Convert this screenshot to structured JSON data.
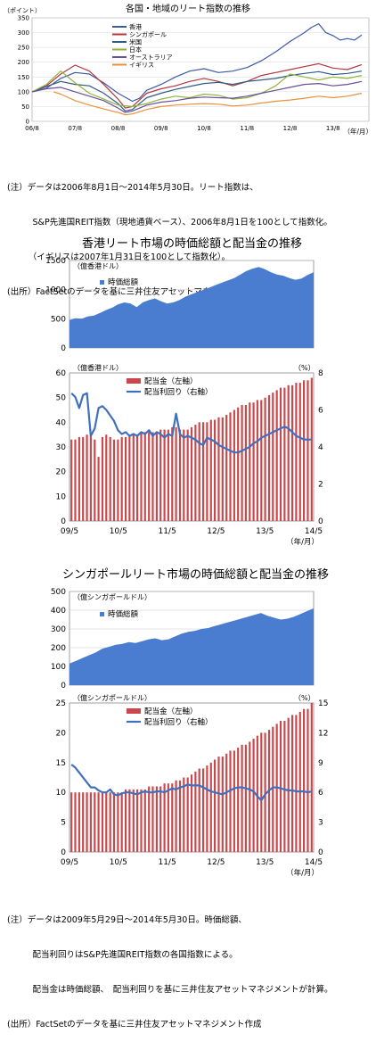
{
  "chart1": {
    "type": "line",
    "title": "各国・地域のリート指数の推移",
    "ylabel": "（ポイント）",
    "xlabel": "（年/月）",
    "ylim": [
      0,
      350
    ],
    "yticks": [
      "0",
      "50",
      "100",
      "150",
      "200",
      "250",
      "300",
      "350"
    ],
    "xtick_labels": [
      "06/8",
      "07/8",
      "08/8",
      "09/8",
      "10/8",
      "11/8",
      "12/8",
      "13/8"
    ],
    "legend": [
      "香港",
      "シンガポール",
      "米国",
      "日本",
      "オーストラリア",
      "イギリス"
    ],
    "colors": [
      "#3c5aa8",
      "#b5373d",
      "#2f5b87",
      "#8fb43a",
      "#6a4d9b",
      "#e9913a"
    ],
    "series": [
      {
        "name": "香港",
        "x": [
          0,
          4,
          8,
          12,
          16,
          20,
          24,
          28,
          30,
          32,
          36,
          40,
          44,
          48,
          52,
          56,
          60,
          64,
          68,
          72,
          76,
          78,
          80,
          82,
          84,
          86,
          88,
          90,
          92
        ],
        "values": [
          100,
          112,
          145,
          165,
          160,
          130,
          95,
          68,
          78,
          105,
          125,
          150,
          170,
          178,
          165,
          170,
          182,
          205,
          235,
          270,
          300,
          318,
          330,
          300,
          290,
          275,
          280,
          275,
          292
        ]
      },
      {
        "name": "シンガポール",
        "x": [
          0,
          4,
          8,
          12,
          16,
          20,
          24,
          26,
          28,
          32,
          36,
          40,
          44,
          48,
          52,
          56,
          60,
          64,
          68,
          72,
          76,
          80,
          84,
          88,
          92
        ],
        "values": [
          100,
          120,
          160,
          190,
          170,
          125,
          75,
          45,
          50,
          95,
          110,
          120,
          135,
          145,
          135,
          120,
          135,
          155,
          165,
          175,
          185,
          195,
          180,
          175,
          192
        ]
      },
      {
        "name": "米国",
        "x": [
          0,
          4,
          8,
          12,
          16,
          20,
          24,
          26,
          28,
          32,
          36,
          40,
          44,
          48,
          52,
          56,
          60,
          64,
          68,
          72,
          76,
          80,
          84,
          88,
          92
        ],
        "values": [
          100,
          118,
          135,
          125,
          120,
          95,
          60,
          35,
          40,
          80,
          95,
          108,
          118,
          128,
          132,
          125,
          135,
          140,
          145,
          155,
          162,
          168,
          158,
          162,
          170
        ]
      },
      {
        "name": "日本",
        "x": [
          0,
          4,
          8,
          12,
          16,
          20,
          24,
          28,
          32,
          36,
          40,
          44,
          48,
          52,
          56,
          60,
          64,
          68,
          72,
          76,
          80,
          84,
          88,
          92
        ],
        "values": [
          100,
          125,
          170,
          130,
          95,
          75,
          55,
          50,
          60,
          75,
          85,
          80,
          92,
          88,
          75,
          80,
          95,
          120,
          160,
          150,
          140,
          150,
          145,
          155
        ]
      },
      {
        "name": "オーストラリア",
        "x": [
          0,
          4,
          8,
          12,
          16,
          20,
          24,
          26,
          28,
          32,
          36,
          40,
          44,
          48,
          52,
          56,
          60,
          64,
          68,
          72,
          76,
          80,
          84,
          88,
          92
        ],
        "values": [
          100,
          110,
          115,
          100,
          85,
          70,
          45,
          30,
          35,
          55,
          65,
          70,
          78,
          82,
          80,
          78,
          85,
          95,
          105,
          115,
          125,
          128,
          120,
          125,
          135
        ]
      },
      {
        "name": "イギリス",
        "x": [
          6,
          8,
          12,
          16,
          20,
          24,
          26,
          28,
          32,
          36,
          40,
          44,
          48,
          52,
          56,
          60,
          64,
          68,
          72,
          76,
          80,
          84,
          88,
          92
        ],
        "values": [
          100,
          92,
          70,
          55,
          42,
          30,
          22,
          25,
          40,
          50,
          55,
          58,
          60,
          58,
          52,
          55,
          62,
          68,
          72,
          78,
          85,
          80,
          85,
          95
        ]
      }
    ]
  },
  "note1": [
    "(注）データは2006年8月1日～2014年5月30日。リート指数は、",
    "　　　S&P先進国REIT指数（現地通貨ベース）、2006年8月1日を100として指数化。",
    "　　　（イギリスは2007年1月31日を100として指数化）。",
    "(出所）FactSetのデータを基に三井住友アセットマネジメント作成"
  ],
  "chart2": {
    "title": "香港リート市場の時価総額と配当金の推移",
    "top": {
      "type": "area",
      "ylabel": "（億香港ドル）",
      "ylim": [
        0,
        1500
      ],
      "yticks": [
        "0",
        "500",
        "1000",
        "1500"
      ],
      "legend": "時価総額",
      "values": [
        480,
        510,
        500,
        540,
        555,
        600,
        650,
        690,
        750,
        780,
        760,
        700,
        780,
        820,
        850,
        800,
        760,
        780,
        820,
        880,
        920,
        960,
        1000,
        1040,
        1080,
        1120,
        1160,
        1200,
        1260,
        1320,
        1360,
        1390,
        1350,
        1300,
        1260,
        1240,
        1200,
        1170,
        1190,
        1250,
        1300
      ]
    },
    "bottom": {
      "type": "bar+line",
      "ylabel_left": "（億香港ドル）",
      "ylabel_right": "（%）",
      "ylim_left": [
        0,
        60
      ],
      "ylim_right": [
        0,
        8
      ],
      "yticks_left": [
        "0",
        "10",
        "20",
        "30",
        "40",
        "50",
        "60"
      ],
      "yticks_right": [
        "0",
        "2",
        "4",
        "6",
        "8"
      ],
      "legend": [
        "配当金（左軸）",
        "配当利回り（右軸）"
      ],
      "xtick_labels": [
        "09/5",
        "10/5",
        "11/5",
        "12/5",
        "13/5",
        "14/5"
      ],
      "xlabel": "（年/月）",
      "bar_values": [
        33,
        33,
        34,
        34,
        35,
        35,
        33,
        26,
        34,
        35,
        34,
        33,
        33,
        34,
        34,
        35,
        35,
        35,
        36,
        36,
        36,
        36,
        36,
        37,
        37,
        37,
        38,
        38,
        37,
        37,
        37,
        38,
        39,
        40,
        40,
        40,
        41,
        41,
        42,
        42,
        43,
        44,
        45,
        46,
        47,
        47,
        48,
        48,
        49,
        49,
        50,
        51,
        52,
        53,
        54,
        54,
        55,
        55,
        56,
        56,
        57,
        57,
        58
      ],
      "line_values": [
        6.9,
        6.7,
        6.1,
        6.8,
        6.9,
        4.6,
        5.0,
        6.1,
        6.2,
        6.0,
        5.7,
        5.4,
        4.9,
        4.7,
        4.8,
        4.6,
        4.7,
        4.6,
        4.8,
        4.7,
        4.9,
        4.6,
        4.8,
        4.7,
        4.5,
        4.7,
        4.6,
        5.8,
        4.7,
        4.5,
        4.6,
        4.5,
        4.4,
        4.2,
        4.1,
        4.5,
        4.4,
        4.3,
        4.1,
        4.0,
        3.9,
        3.8,
        3.7,
        3.7,
        3.8,
        3.9,
        4.0,
        4.2,
        4.3,
        4.5,
        4.6,
        4.7,
        4.8,
        4.9,
        5.0,
        5.1,
        5.0,
        4.8,
        4.6,
        4.5,
        4.4,
        4.4,
        4.4
      ]
    }
  },
  "chart3": {
    "title": "シンガポールリート市場の時価総額と配当金の推移",
    "top": {
      "type": "area",
      "ylabel": "（億シンガポールドル）",
      "ylim": [
        0,
        500
      ],
      "yticks": [
        "0",
        "100",
        "200",
        "300",
        "400",
        "500"
      ],
      "legend": "時価総額",
      "values": [
        115,
        130,
        145,
        160,
        175,
        195,
        205,
        215,
        220,
        230,
        225,
        235,
        245,
        250,
        240,
        245,
        260,
        275,
        285,
        290,
        300,
        305,
        315,
        325,
        335,
        345,
        355,
        365,
        375,
        385,
        370,
        360,
        350,
        355,
        365,
        380,
        395,
        410
      ]
    },
    "bottom": {
      "type": "bar+line",
      "ylabel_left": "（億シンガポールドル）",
      "ylabel_right": "（%）",
      "ylim_left": [
        0,
        25
      ],
      "ylim_right": [
        0,
        15
      ],
      "yticks_left": [
        "0",
        "5",
        "10",
        "15",
        "20",
        "25"
      ],
      "yticks_right": [
        "0",
        "3",
        "6",
        "9",
        "12",
        "15"
      ],
      "legend": [
        "配当金（左軸）",
        "配当利回り（右軸）"
      ],
      "xtick_labels": [
        "09/5",
        "10/5",
        "11/5",
        "12/5",
        "13/5",
        "14/5"
      ],
      "xlabel": "（年/月）",
      "bar_values": [
        10,
        10,
        10,
        10,
        10,
        10,
        10,
        10,
        10,
        10,
        10,
        10,
        10,
        10,
        10.5,
        10.5,
        10.5,
        10.5,
        10.5,
        10.5,
        11,
        11,
        11,
        11,
        11.5,
        11.5,
        11.5,
        12,
        12,
        12.5,
        12.5,
        13,
        13.5,
        14,
        14,
        14.5,
        15,
        15.5,
        16,
        16,
        16.5,
        17,
        17,
        17.5,
        18,
        18,
        18.5,
        19,
        19.5,
        20,
        20,
        20.5,
        21,
        21.5,
        22,
        22,
        22.5,
        23,
        23,
        23.5,
        24,
        24,
        25
      ],
      "line_values": [
        8.8,
        8.5,
        8.0,
        7.5,
        7.0,
        6.5,
        6.5,
        6.2,
        6.0,
        6.0,
        6.3,
        5.8,
        5.7,
        5.9,
        6.0,
        6.0,
        5.9,
        5.8,
        6.0,
        6.1,
        6.0,
        6.0,
        6.1,
        6.1,
        6.0,
        6.2,
        6.4,
        6.3,
        6.5,
        6.6,
        6.8,
        6.7,
        6.7,
        6.7,
        6.5,
        6.3,
        6.1,
        6.0,
        5.9,
        5.8,
        6.0,
        6.2,
        6.4,
        6.5,
        6.5,
        6.4,
        6.3,
        6.1,
        5.6,
        5.2,
        5.8,
        6.2,
        6.5,
        6.5,
        6.4,
        6.3,
        6.2,
        6.2,
        6.1,
        6.1,
        6.1,
        6.0,
        6.1
      ]
    }
  },
  "note2": [
    "(注）データは2009年5月29日～2014年5月30日。時価総額、",
    "　　　配当利回りはS&P先進国REIT指数の各国指数による。",
    "　　　配当金は時価総額、　配当利回りを基に三井住友アセットマネジメントが計算。",
    "(出所）FactSetのデータを基に三井住友アセットマネジメント作成"
  ]
}
